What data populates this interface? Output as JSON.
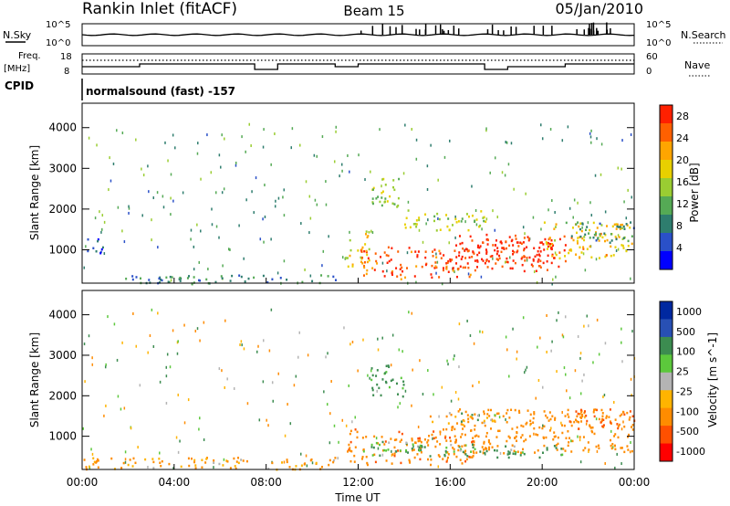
{
  "header": {
    "station": "Rankin Inlet (fitACF)",
    "beam": "Beam 15",
    "date": "05/Jan/2010"
  },
  "noise_panel": {
    "left_label": "N.Sky",
    "right_label": "N.Search",
    "tick_top": "10^5",
    "tick_bottom": "10^0"
  },
  "freq_panel": {
    "left_label_1": "Freq.",
    "left_label_2": "[MHz]",
    "left_ticks": [
      "18",
      "8"
    ],
    "right_label": "Nave",
    "right_ticks": [
      "60",
      "0"
    ]
  },
  "cpid": {
    "label": "CPID",
    "value": "normalsound (fast) -157"
  },
  "colors": {
    "axis": "#000000",
    "power_scale": [
      "#0000ff",
      "#2a50c8",
      "#2e7d6e",
      "#55aa55",
      "#9acd32",
      "#e8d000",
      "#ffa500",
      "#ff6000",
      "#ff2000"
    ],
    "velocity_scale": [
      "#0028a0",
      "#2850b4",
      "#3c8c50",
      "#5cc83c",
      "#b4b4b4",
      "#ffb400",
      "#ff8c00",
      "#ff5000",
      "#ff0000"
    ]
  },
  "chart_data": [
    {
      "type": "heatmap",
      "name": "power",
      "ylabel": "Slant Range [km]",
      "xlabel": "",
      "xlim": [
        "00:00",
        "24:00"
      ],
      "ylim": [
        180,
        4600
      ],
      "y_ticks": [
        "1000",
        "2000",
        "3000",
        "4000"
      ],
      "x_ticks": [
        "00:00",
        "04:00",
        "08:00",
        "12:00",
        "16:00",
        "20:00",
        "00:00"
      ],
      "colorbar": {
        "label": "Power [dB]",
        "ticks": [
          "4",
          "8",
          "12",
          "16",
          "20",
          "24",
          "28"
        ],
        "range": [
          0,
          30
        ]
      },
      "regions": [
        {
          "t0": 0.0,
          "t1": 1.0,
          "r0": 900,
          "r1": 1300,
          "level": 6
        },
        {
          "t0": 0.0,
          "t1": 11.0,
          "r0": 200,
          "r1": 400,
          "level": 8
        },
        {
          "t0": 11.5,
          "t1": 12.5,
          "r0": 600,
          "r1": 1500,
          "level": 18
        },
        {
          "t0": 12.0,
          "t1": 17.0,
          "r0": 300,
          "r1": 1100,
          "level": 26
        },
        {
          "t0": 14.0,
          "t1": 17.5,
          "r0": 1500,
          "r1": 2000,
          "level": 16
        },
        {
          "t0": 16.0,
          "t1": 20.5,
          "r0": 500,
          "r1": 1400,
          "level": 28
        },
        {
          "t0": 17.0,
          "t1": 21.0,
          "r0": 600,
          "r1": 1300,
          "level": 29
        },
        {
          "t0": 20.0,
          "t1": 24.0,
          "r0": 800,
          "r1": 1700,
          "level": 20
        },
        {
          "t0": 21.0,
          "t1": 24.0,
          "r0": 1200,
          "r1": 1700,
          "level": 10
        },
        {
          "t0": 12.5,
          "t1": 14.0,
          "r0": 2000,
          "r1": 2800,
          "level": 14
        }
      ]
    },
    {
      "type": "heatmap",
      "name": "velocity",
      "ylabel": "Slant Range [km]",
      "xlabel": "Time UT",
      "xlim": [
        "00:00",
        "24:00"
      ],
      "ylim": [
        180,
        4600
      ],
      "y_ticks": [
        "1000",
        "2000",
        "3000",
        "4000"
      ],
      "x_ticks": [
        "00:00",
        "04:00",
        "08:00",
        "12:00",
        "16:00",
        "20:00",
        "00:00"
      ],
      "colorbar": {
        "label": "Velocity [m s^-1]",
        "ticks": [
          "1000",
          "500",
          "100",
          "25",
          "-25",
          "-100",
          "-500",
          "-1000"
        ],
        "range": [
          -1200,
          1200
        ]
      },
      "regions": [
        {
          "t0": 0.0,
          "t1": 11.0,
          "r0": 200,
          "r1": 500,
          "level": -150
        },
        {
          "t0": 11.5,
          "t1": 17.0,
          "r0": 300,
          "r1": 1200,
          "level": -400
        },
        {
          "t0": 12.0,
          "t1": 17.0,
          "r0": 500,
          "r1": 900,
          "level": 150
        },
        {
          "t0": 16.0,
          "t1": 24.0,
          "r0": 600,
          "r1": 1700,
          "level": -300
        },
        {
          "t0": 17.0,
          "t1": 21.0,
          "r0": 500,
          "r1": 800,
          "level": 150
        },
        {
          "t0": 15.0,
          "t1": 18.0,
          "r0": 1300,
          "r1": 1600,
          "level": 0
        },
        {
          "t0": 21.0,
          "t1": 24.0,
          "r0": 1200,
          "r1": 1700,
          "level": -500
        },
        {
          "t0": 12.5,
          "t1": 14.0,
          "r0": 2000,
          "r1": 2800,
          "level": 200
        }
      ]
    }
  ]
}
